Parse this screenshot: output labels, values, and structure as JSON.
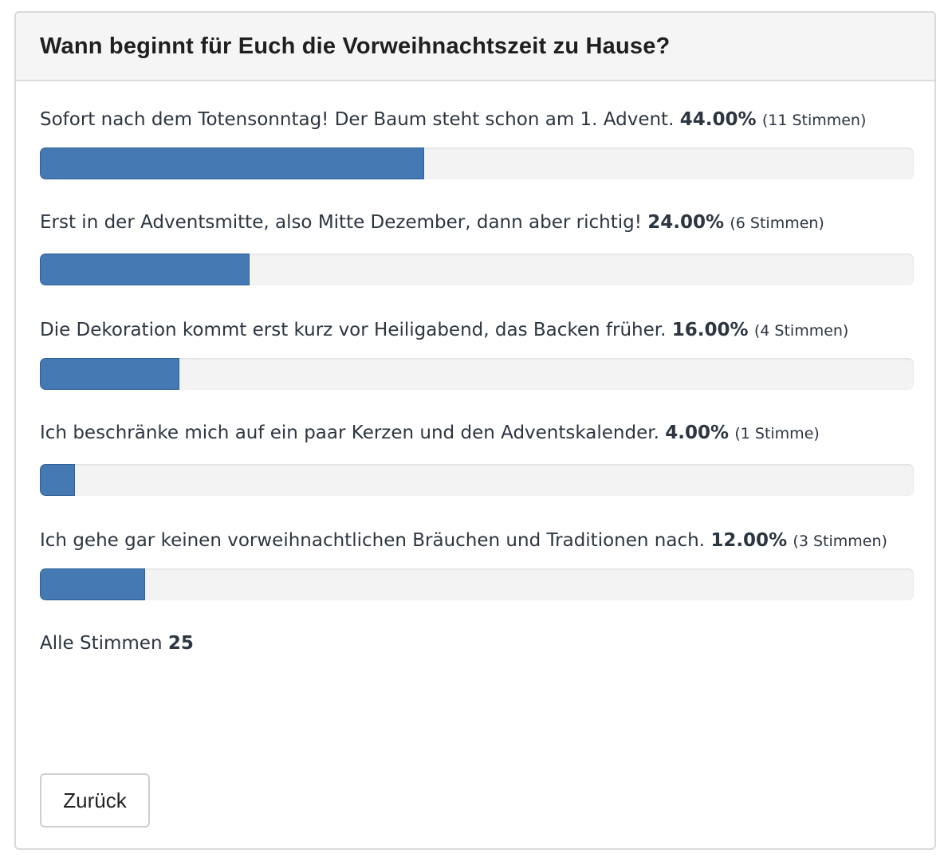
{
  "poll": {
    "title": "Wann beginnt für Euch die Vorweihnachtszeit zu Hause?",
    "options": [
      {
        "label": "Sofort nach dem Totensonntag! Der Baum steht schon am 1. Advent.",
        "percent_text": "44.00%",
        "votes_text": "(11 Stimmen)",
        "share": 0.44
      },
      {
        "label": "Erst in der Adventsmitte, also Mitte Dezember, dann aber richtig!",
        "percent_text": "24.00%",
        "votes_text": "(6 Stimmen)",
        "share": 0.24
      },
      {
        "label": "Die Dekoration kommt erst kurz vor Heiligabend, das Backen früher.",
        "percent_text": "16.00%",
        "votes_text": "(4 Stimmen)",
        "share": 0.16
      },
      {
        "label": "Ich beschränke mich auf ein paar Kerzen und den Adventskalender.",
        "percent_text": "4.00%",
        "votes_text": "(1 Stimme)",
        "share": 0.04
      },
      {
        "label": "Ich gehe gar keinen vorweihnachtlichen Bräuchen und Traditionen nach.",
        "percent_text": "12.00%",
        "votes_text": "(3 Stimmen)",
        "share": 0.12
      }
    ],
    "total_label": "Alle Stimmen",
    "total_votes": "25",
    "back_label": "Zurück"
  },
  "colors": {
    "bar_fill": "#4479b3",
    "bar_track": "#f3f3f3",
    "header_bg": "#f5f5f5",
    "text": "#2d3540"
  }
}
